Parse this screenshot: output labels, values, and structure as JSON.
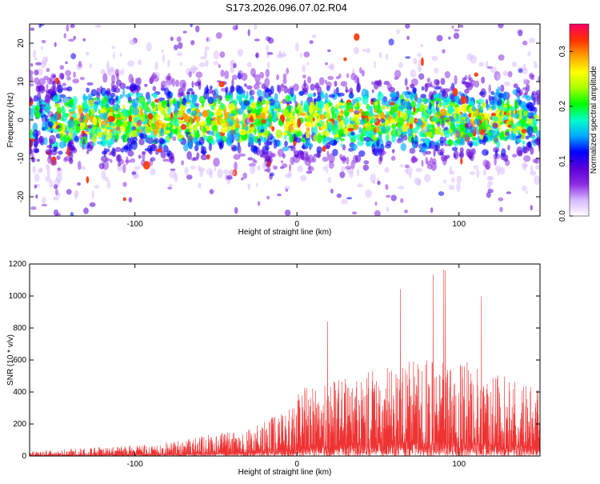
{
  "title": "S173.2026.096.07.02.R04",
  "chart_data": [
    {
      "type": "heatmap",
      "xlabel": "Height of straight line (km)",
      "ylabel": "Frequency (Hz)",
      "xlim": [
        -165,
        150
      ],
      "ylim": [
        -25,
        25
      ],
      "x_ticks": [
        -100,
        0,
        100
      ],
      "y_ticks": [
        -20,
        -10,
        0,
        10,
        20
      ],
      "colorbar": {
        "label": "Normalized spectral amplitude",
        "range": [
          0.0,
          0.35
        ],
        "ticks": [
          0.0,
          0.1,
          0.2,
          0.3
        ],
        "colors": [
          "#ffffff",
          "#d7b8ff",
          "#8a2be2",
          "#5a00d8",
          "#0000ff",
          "#00aaff",
          "#00ffc8",
          "#00ff00",
          "#aaff00",
          "#ffff00",
          "#ffa000",
          "#ff3000",
          "#ff0066"
        ]
      }
    },
    {
      "type": "line",
      "xlabel": "Height of straight line (km)",
      "ylabel": "SNR (10 * v/v)",
      "xlim": [
        -165,
        150
      ],
      "ylim": [
        0,
        1200
      ],
      "x_ticks": [
        -100,
        0,
        100
      ],
      "y_ticks": [
        0,
        200,
        400,
        600,
        800,
        1000,
        1200
      ],
      "line_color": "#ee3333"
    }
  ]
}
